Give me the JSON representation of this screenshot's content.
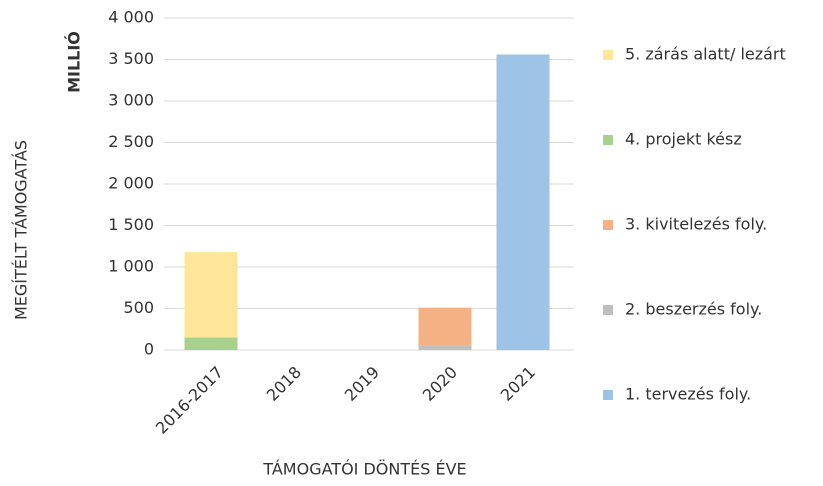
{
  "chart_data": {
    "type": "stacked_bar",
    "y_label": "MEGÍTÉLT TÁMOGATÁS",
    "y_unit": "MILLIÓ",
    "x_label": "TÁMOGATÓI DÖNTÉS ÉVE",
    "categories": [
      "2016-2017",
      "2018",
      "2019",
      "2020",
      "2021"
    ],
    "series": [
      {
        "name": "1. tervezés foly.",
        "color": "#9dc3e6",
        "values": [
          0,
          0,
          0,
          0,
          3560
        ]
      },
      {
        "name": "2. beszerzés foly.",
        "color": "#bfbfbf",
        "values": [
          0,
          0,
          0,
          50,
          0
        ]
      },
      {
        "name": "3. kivitelezés foly.",
        "color": "#f4b183",
        "values": [
          0,
          0,
          0,
          460,
          0
        ]
      },
      {
        "name": "4. projekt kész",
        "color": "#a9d18e",
        "values": [
          150,
          0,
          0,
          0,
          0
        ]
      },
      {
        "name": "5. zárás alatt/ lezárt",
        "color": "#ffe699",
        "values": [
          1030,
          0,
          0,
          0,
          0
        ]
      }
    ],
    "ylim": [
      0,
      4000
    ],
    "yticks": [
      0,
      500,
      {
        "value": 1000,
        "label": "1 000"
      },
      {
        "value": 1500,
        "label": "1 500"
      },
      {
        "value": 2000,
        "label": "2 000"
      },
      {
        "value": 2500,
        "label": "2 500"
      },
      {
        "value": 3000,
        "label": "3 000"
      },
      {
        "value": 3500,
        "label": "3 500"
      },
      {
        "value": 4000,
        "label": "4 000"
      }
    ],
    "grid": true,
    "legend": "right"
  }
}
